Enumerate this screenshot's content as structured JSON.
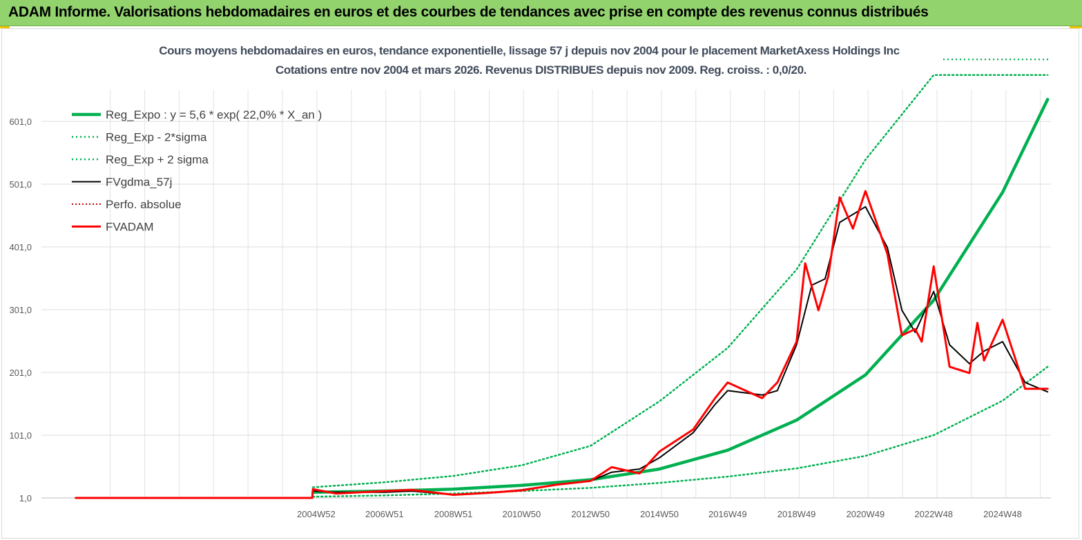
{
  "header": {
    "title": "ADAM Informe. Valorisations hebdomadaires en euros et des courbes de tendances avec prise en compte des revenus connus distribués"
  },
  "colors": {
    "banner": "#92d36e",
    "reg_expo": "#00b050",
    "fv_gdma": "#000000",
    "fvadam": "#ff0000",
    "perfo": "#c00000"
  },
  "chart_data": {
    "type": "line",
    "title": "Cours moyens hebdomadaires en euros, tendance exponentielle, lissage 57 j depuis nov 2004 pour le placement MarketAxess Holdings Inc",
    "subtitle": "Cotations entre nov 2004 et mars 2026. Revenus DISTRIBUES depuis nov 2009. Reg. croiss. : 0,0/20.",
    "xlabel": "",
    "ylabel": "",
    "ylim": [
      1,
      675
    ],
    "y_ticks": [
      "1,0",
      "101,0",
      "201,0",
      "301,0",
      "401,0",
      "501,0",
      "601,0"
    ],
    "x_ticks": [
      "2004W52",
      "2006W51",
      "2008W51",
      "2010W50",
      "2012W50",
      "2014W50",
      "2016W49",
      "2018W49",
      "2020W49",
      "2022W48",
      "2024W48"
    ],
    "grid": true,
    "legend_position": "top-left",
    "series": [
      {
        "name": "Reg_Expo : y = 5,6 * exp( 22,0% *  X_an )",
        "style": "solid-thick",
        "x": [
          "2004W47",
          "2006W51",
          "2008W51",
          "2010W50",
          "2012W50",
          "2014W50",
          "2016W49",
          "2018W49",
          "2020W49",
          "2022W48",
          "2024W48",
          "2026W12"
        ],
        "values": [
          10,
          12,
          15,
          21,
          30,
          47,
          77,
          125,
          197,
          316,
          488,
          636
        ]
      },
      {
        "name": "Reg_Exp - 2*sigma",
        "style": "dotted",
        "x": [
          "2004W47",
          "2006W51",
          "2008W51",
          "2010W50",
          "2012W50",
          "2014W50",
          "2016W49",
          "2018W49",
          "2020W49",
          "2022W48",
          "2024W48",
          "2026W12"
        ],
        "values": [
          3,
          5,
          8,
          12,
          17,
          25,
          35,
          48,
          68,
          101,
          156,
          210
        ]
      },
      {
        "name": "Reg_Exp + 2 sigma",
        "style": "dotted",
        "x": [
          "2004W47",
          "2006W51",
          "2008W51",
          "2010W50",
          "2012W50",
          "2014W50",
          "2016W49",
          "2018W49",
          "2020W49",
          "2022W48",
          "2024W48",
          "2026W12"
        ],
        "values": [
          18,
          26,
          36,
          53,
          84,
          155,
          240,
          365,
          540,
          675,
          675,
          675
        ]
      },
      {
        "name": "FVgdma_57j",
        "style": "solid",
        "x": [
          "2004W47",
          "2005W30",
          "2006W51",
          "2007W40",
          "2008W51",
          "2009W50",
          "2010W50",
          "2011W50",
          "2012W50",
          "2013W30",
          "2014W20",
          "2014W50",
          "2015W49",
          "2016W30",
          "2016W49",
          "2017W49",
          "2018W20",
          "2018W49",
          "2019W20",
          "2019W40",
          "2020W10",
          "2020W49",
          "2021W30",
          "2021W52",
          "2022W20",
          "2022W48",
          "2023W20",
          "2023W50",
          "2024W20",
          "2024W48",
          "2025W30",
          "2026W12"
        ],
        "values": [
          12,
          10,
          10,
          12,
          6,
          9,
          14,
          22,
          28,
          42,
          47,
          65,
          105,
          150,
          172,
          165,
          172,
          245,
          340,
          350,
          440,
          465,
          400,
          300,
          265,
          330,
          245,
          215,
          235,
          250,
          185,
          170
        ]
      },
      {
        "name": "Perfo. absolue",
        "style": "dotted",
        "x": [
          "1998W01",
          "2004W47"
        ],
        "values": [
          1,
          1
        ]
      },
      {
        "name": "FVADAM",
        "style": "solid-thick",
        "x": [
          "1998W01",
          "2004W46",
          "2004W47",
          "2005W30",
          "2006W51",
          "2007W40",
          "2008W51",
          "2009W50",
          "2010W50",
          "2011W50",
          "2012W50",
          "2013W30",
          "2014W20",
          "2014W50",
          "2015W49",
          "2016W30",
          "2016W49",
          "2017W49",
          "2018W20",
          "2018W49",
          "2019W10",
          "2019W30",
          "2019W45",
          "2020W10",
          "2020W30",
          "2020W49",
          "2021W30",
          "2021W52",
          "2022W20",
          "2022W30",
          "2022W48",
          "2023W20",
          "2023W50",
          "2024W10",
          "2024W20",
          "2024W48",
          "2025W30",
          "2026W12"
        ],
        "values": [
          1,
          1,
          15,
          8,
          12,
          14,
          6,
          9,
          13,
          22,
          28,
          50,
          40,
          75,
          110,
          160,
          185,
          160,
          185,
          250,
          375,
          300,
          355,
          480,
          430,
          490,
          390,
          260,
          270,
          250,
          370,
          210,
          200,
          280,
          220,
          285,
          175,
          175
        ]
      }
    ]
  }
}
